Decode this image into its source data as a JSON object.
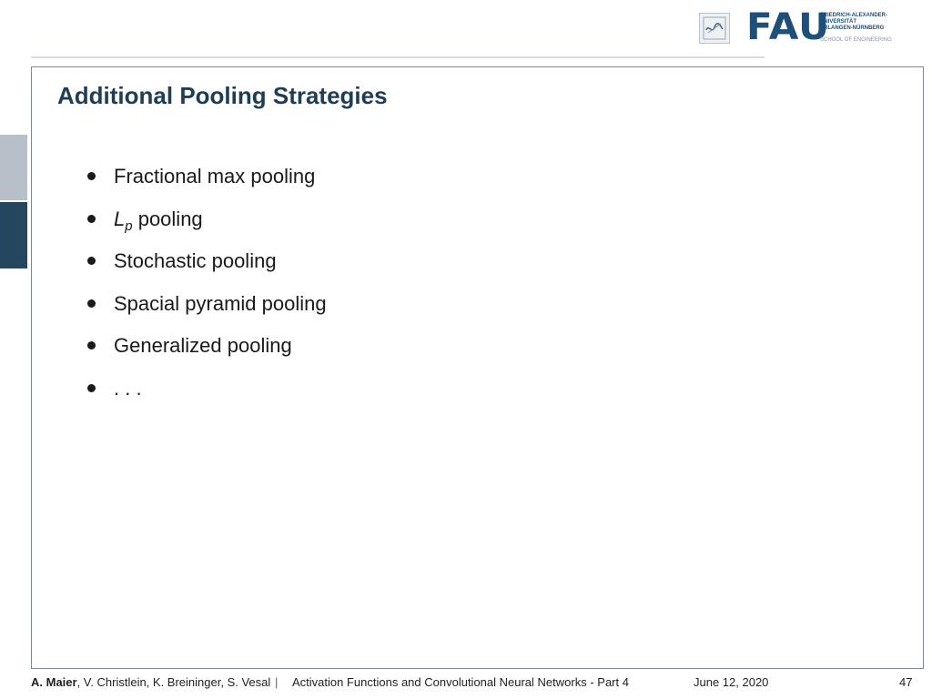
{
  "header": {
    "logo_word": "FAU",
    "university_lines": [
      "FRIEDRICH-ALEXANDER-",
      "UNIVERSITÄT",
      "ERLANGEN-NÜRNBERG"
    ],
    "school": "SCHOOL OF ENGINEERING"
  },
  "slide": {
    "title": "Additional Pooling Strategies",
    "bullets": [
      "Fractional max pooling",
      {
        "main": "L",
        "sub": "p",
        "rest": " pooling"
      },
      "Stochastic pooling",
      "Spacial pyramid pooling",
      "Generalized pooling",
      ". . ."
    ]
  },
  "footer": {
    "lead_author": "A. Maier",
    "coauthors": ", V. Christlein, K. Breininger, S. Vesal",
    "separator": "|",
    "talk": "Activation Functions and Convolutional Neural Networks - Part 4",
    "date": "June 12, 2020",
    "page": "47"
  },
  "colors": {
    "title": "#1f3d55",
    "accent_dark": "#25465f",
    "accent_light": "#b7c0c9",
    "fau_blue": "#1f4e79"
  }
}
